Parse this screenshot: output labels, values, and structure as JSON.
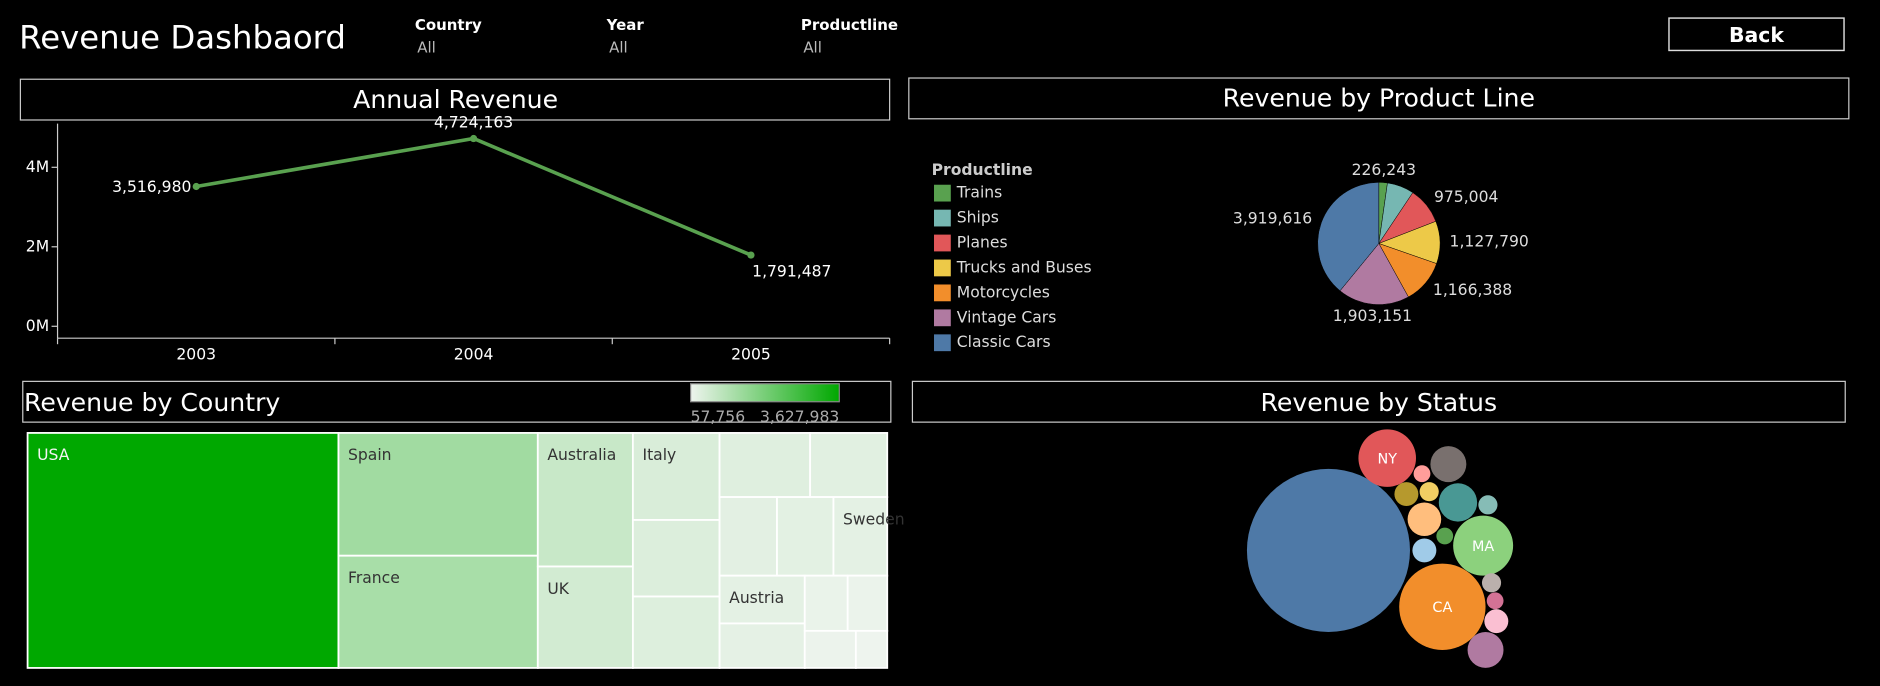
{
  "header": {
    "title": "Revenue Dashbaord",
    "filters": [
      {
        "label": "Country",
        "value": "All"
      },
      {
        "label": "Year",
        "value": "All"
      },
      {
        "label": "Productline",
        "value": "All"
      }
    ],
    "button": "Back"
  },
  "chart_data": [
    {
      "type": "line",
      "title": "Annual Revenue",
      "categories": [
        "2003",
        "2004",
        "2005"
      ],
      "values": [
        3516980,
        4724163,
        1791487
      ],
      "value_labels": [
        "3,516,980",
        "4,724,163",
        "1,791,487"
      ],
      "color": "#59a14f",
      "ylim": [
        -300000,
        5100000
      ],
      "yticks": [
        {
          "value": 0,
          "label": "0M"
        },
        {
          "value": 2000000,
          "label": "2M"
        },
        {
          "value": 4000000,
          "label": "4M"
        }
      ]
    },
    {
      "type": "pie",
      "title": "Revenue by Product Line",
      "legend_title": "Productline",
      "categories": [
        "Trains",
        "Ships",
        "Planes",
        "Trucks and Buses",
        "Motorcycles",
        "Vintage Cars",
        "Classic Cars"
      ],
      "values": [
        226243,
        714437,
        975004,
        1127790,
        1166388,
        1903151,
        3919616
      ],
      "value_labels": [
        "226,243",
        null,
        "975,004",
        "1,127,790",
        "1,166,388",
        "1,903,151",
        "3,919,616"
      ],
      "colors": [
        "#59a14f",
        "#76b7b2",
        "#e15759",
        "#edc948",
        "#f28e2b",
        "#b07aa1",
        "#4e79a7"
      ]
    },
    {
      "type": "treemap",
      "title": "Revenue by Country",
      "categories": [
        "USA",
        "Spain",
        "France",
        "Australia",
        "UK",
        "Italy",
        null,
        null,
        null,
        null,
        null,
        null,
        "Sweden",
        "Austria",
        null,
        null,
        null,
        null,
        null
      ],
      "values": [
        3627983,
        1215687,
        1110917,
        630623,
        478880,
        374674,
        329581,
        307464,
        288488,
        245637,
        224079,
        220472,
        210014,
        202063,
        188168,
        117714,
        108413,
        94015,
        57756
      ],
      "colorlim": [
        57756,
        3627983
      ],
      "colorticks": [
        {
          "value": 57756,
          "label": "57,756"
        },
        {
          "value": 3627983,
          "label": "3,627,983"
        }
      ],
      "colors": [
        "#eef4ee",
        "#00a800"
      ]
    },
    {
      "type": "bubble",
      "title": "Revenue by Status",
      "categories": [
        null,
        "CA",
        "MA",
        "NY",
        null,
        null,
        null,
        null,
        null,
        null,
        null,
        null,
        null,
        null,
        null,
        null,
        null
      ],
      "values": [
        5370000,
        1506000,
        726000,
        669000,
        261000,
        297000,
        228000,
        261000,
        116000,
        74000,
        116000,
        57000,
        116000,
        57000,
        74000,
        57000,
        74000
      ],
      "colors": [
        "#4e79a7",
        "#f28e2b",
        "#8cd17d",
        "#e15759",
        "#79706e",
        "#499894",
        "#ffbe7d",
        "#b07aa1",
        "#b6992d",
        "#f1ce63",
        "#a0cbe8",
        "#59a14f",
        "#fabfd2",
        "#d37295",
        "#bab0ac",
        "#ff9d9a",
        "#86bcb6"
      ]
    }
  ]
}
